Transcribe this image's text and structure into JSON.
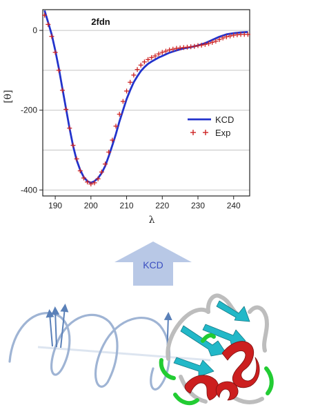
{
  "chart_data": {
    "type": "line",
    "title": "2fdn",
    "xlabel": "λ",
    "ylabel": "[θ]",
    "xlim": [
      186.5,
      244.5
    ],
    "ylim": [
      -415,
      52
    ],
    "xticks": [
      190,
      200,
      210,
      220,
      230,
      240
    ],
    "yticks": [
      0,
      -200,
      -400
    ],
    "grid": "horizontal",
    "legend_position": "right",
    "series": [
      {
        "name": "KCD",
        "style": "line",
        "color": "#2233cc",
        "x": [
          187,
          188,
          189,
          190,
          191,
          192,
          193,
          194,
          195,
          196,
          197,
          198,
          199,
          200,
          201,
          202,
          203,
          204,
          205,
          206,
          207,
          208,
          209,
          210,
          211,
          212,
          213,
          214,
          215,
          216,
          217,
          218,
          219,
          220,
          222,
          224,
          226,
          228,
          230,
          232,
          234,
          236,
          238,
          240,
          242,
          244
        ],
        "y": [
          50,
          20,
          -10,
          -50,
          -95,
          -145,
          -195,
          -245,
          -290,
          -325,
          -350,
          -368,
          -378,
          -382,
          -378,
          -370,
          -358,
          -340,
          -315,
          -288,
          -260,
          -228,
          -200,
          -172,
          -150,
          -130,
          -115,
          -102,
          -92,
          -84,
          -78,
          -73,
          -68,
          -64,
          -56,
          -50,
          -45,
          -42,
          -38,
          -32,
          -24,
          -16,
          -10,
          -7,
          -5,
          -4
        ]
      },
      {
        "name": "Exp",
        "style": "markers",
        "marker": "+",
        "color": "#cc2222",
        "x": [
          187,
          188,
          189,
          190,
          191,
          192,
          193,
          194,
          195,
          196,
          197,
          198,
          199,
          200,
          201,
          202,
          203,
          204,
          205,
          206,
          207,
          208,
          209,
          210,
          211,
          212,
          213,
          214,
          215,
          216,
          217,
          218,
          219,
          220,
          221,
          222,
          223,
          224,
          225,
          226,
          227,
          228,
          229,
          230,
          231,
          232,
          233,
          234,
          235,
          236,
          237,
          238,
          239,
          240,
          241,
          242,
          243,
          244
        ],
        "y": [
          38,
          15,
          -15,
          -55,
          -100,
          -150,
          -198,
          -245,
          -288,
          -322,
          -352,
          -370,
          -380,
          -385,
          -382,
          -372,
          -355,
          -335,
          -305,
          -275,
          -240,
          -210,
          -178,
          -152,
          -130,
          -112,
          -98,
          -87,
          -79,
          -73,
          -68,
          -64,
          -59,
          -55,
          -52,
          -49,
          -47,
          -45,
          -44,
          -43,
          -42,
          -41,
          -40,
          -38,
          -37,
          -35,
          -33,
          -30,
          -27,
          -23,
          -19,
          -16,
          -14,
          -12,
          -11,
          -10,
          -10,
          -10
        ]
      }
    ]
  },
  "arrow": {
    "label": "KCD",
    "fill_color": "#b8c8e6",
    "text_color": "#3a4ec0"
  },
  "illustration": {
    "helix_color": "#9fb4d4",
    "vector_color": "#5a80b8",
    "protein_colors": {
      "coil": "#bdbdbd",
      "strand": "#22b8c8",
      "helix": "#cc1f1f",
      "turn": "#22cc33"
    }
  }
}
